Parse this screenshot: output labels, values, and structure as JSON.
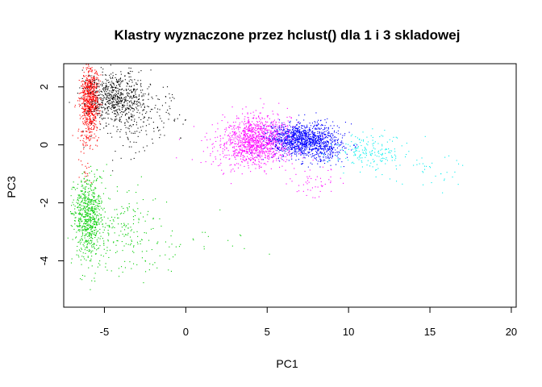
{
  "chart_data": {
    "type": "scatter",
    "title": "Klastry wyznaczone przez hclust() dla 1 i 3 skladowej",
    "xlabel": "PC1",
    "ylabel": "PC3",
    "xlim": [
      -7.5,
      20.3
    ],
    "ylim": [
      -5.6,
      2.8
    ],
    "xticks": [
      -5,
      0,
      5,
      10,
      15,
      20
    ],
    "yticks": [
      -4,
      -2,
      0,
      2
    ],
    "legend": "none",
    "grid": false,
    "point_marker": "single-pixel dot",
    "series": [
      {
        "color": "#ff0000",
        "clusters": [
          {
            "cx": -5.9,
            "cy": 1.55,
            "sx": 0.28,
            "sy": 0.55,
            "n": 750
          },
          {
            "cx": -6.2,
            "cy": 0.4,
            "sx": 0.25,
            "sy": 0.35,
            "n": 60
          },
          {
            "cx": -6.1,
            "cy": -1.0,
            "sx": 0.15,
            "sy": 0.25,
            "n": 15
          }
        ]
      },
      {
        "color": "#000000",
        "clusters": [
          {
            "cx": -4.3,
            "cy": 1.65,
            "sx": 0.9,
            "sy": 0.45,
            "n": 650
          },
          {
            "cx": -3.0,
            "cy": 0.7,
            "sx": 1.1,
            "sy": 0.55,
            "n": 120
          },
          {
            "cx": -1.5,
            "cy": 1.2,
            "sx": 0.6,
            "sy": 0.5,
            "n": 40
          }
        ]
      },
      {
        "color": "#00cd00",
        "clusters": [
          {
            "cx": -6.0,
            "cy": -2.5,
            "sx": 0.45,
            "sy": 0.7,
            "n": 650
          },
          {
            "cx": -4.3,
            "cy": -2.9,
            "sx": 1.2,
            "sy": 0.75,
            "n": 200
          },
          {
            "cx": -1.6,
            "cy": -3.6,
            "sx": 1.2,
            "sy": 0.55,
            "n": 40
          },
          {
            "cx": 2.5,
            "cy": -3.3,
            "sx": 1.2,
            "sy": 0.4,
            "n": 12
          }
        ]
      },
      {
        "color": "#ff00ff",
        "clusters": [
          {
            "cx": 4.4,
            "cy": 0.2,
            "sx": 1.0,
            "sy": 0.4,
            "n": 1100
          },
          {
            "cx": 3.2,
            "cy": 0.0,
            "sx": 1.3,
            "sy": 0.5,
            "n": 150
          },
          {
            "cx": 7.7,
            "cy": -1.3,
            "sx": 0.8,
            "sy": 0.25,
            "n": 50
          }
        ]
      },
      {
        "color": "#0000ff",
        "clusters": [
          {
            "cx": 7.1,
            "cy": 0.2,
            "sx": 1.0,
            "sy": 0.3,
            "n": 1100
          },
          {
            "cx": 8.6,
            "cy": -0.1,
            "sx": 0.6,
            "sy": 0.3,
            "n": 200
          }
        ]
      },
      {
        "color": "#00eeee",
        "clusters": [
          {
            "cx": 11.3,
            "cy": -0.2,
            "sx": 1.1,
            "sy": 0.3,
            "n": 180
          },
          {
            "cx": 14.5,
            "cy": -0.8,
            "sx": 2.0,
            "sy": 0.4,
            "n": 40
          }
        ]
      }
    ]
  }
}
